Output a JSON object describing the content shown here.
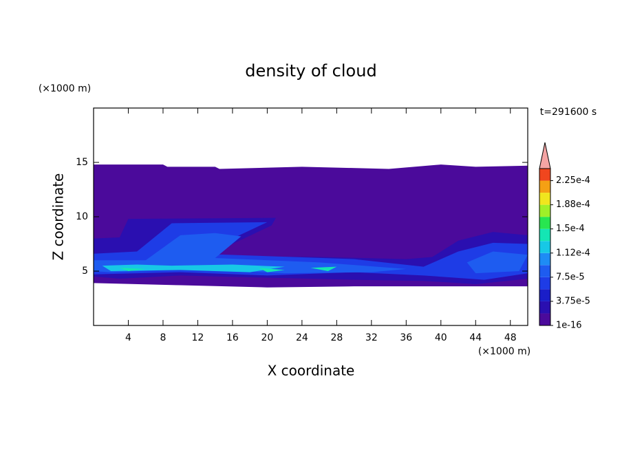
{
  "chart_data": {
    "type": "contour",
    "title": "density of cloud",
    "time_label": "t=291600 s",
    "x_label": "X coordinate",
    "y_label": "Z coordinate",
    "x_unit": "(×1000 m)",
    "y_unit": "(×1000 m)",
    "xlim": [
      0,
      50
    ],
    "ylim": [
      0,
      20
    ],
    "xticks": [
      4,
      8,
      12,
      16,
      20,
      24,
      28,
      32,
      36,
      40,
      44,
      48
    ],
    "yticks": [
      5,
      10,
      15
    ],
    "colorbar": {
      "range": [
        1e-16,
        0.00024375
      ],
      "bands": [
        "#4b0a9b",
        "#2a0fb0",
        "#1a1ec8",
        "#1e3ce6",
        "#1e5cf0",
        "#1e8cf5",
        "#17c8e6",
        "#14e6b4",
        "#28e650",
        "#a0f028",
        "#f0e61e",
        "#f5a014",
        "#f0461e"
      ],
      "extend_color": "#f4a4a4",
      "ticks": [
        {
          "value": 1e-16,
          "label": "1e-16"
        },
        {
          "value": 3.75e-05,
          "label": "3.75e-5"
        },
        {
          "value": 7.5e-05,
          "label": "7.5e-5"
        },
        {
          "value": 0.0001125,
          "label": "1.12e-4"
        },
        {
          "value": 0.00015,
          "label": "1.5e-4"
        },
        {
          "value": 0.0001875,
          "label": "1.88e-4"
        },
        {
          "value": 0.000225,
          "label": "2.25e-4"
        }
      ]
    },
    "regions": [
      {
        "level": 1e-16,
        "points": [
          [
            0,
            14.8
          ],
          [
            8,
            14.8
          ],
          [
            8.5,
            14.6
          ],
          [
            14,
            14.6
          ],
          [
            14.5,
            14.4
          ],
          [
            24,
            14.6
          ],
          [
            34,
            14.4
          ],
          [
            40,
            14.8
          ],
          [
            44,
            14.6
          ],
          [
            50,
            14.7
          ],
          [
            50,
            3.6
          ],
          [
            40,
            3.6
          ],
          [
            30,
            3.6
          ],
          [
            20,
            3.5
          ],
          [
            10,
            3.7
          ],
          [
            0,
            3.9
          ]
        ]
      },
      {
        "level": 1.875e-05,
        "points": [
          [
            0,
            8
          ],
          [
            3,
            8.1
          ],
          [
            4,
            9.8
          ],
          [
            21,
            9.9
          ],
          [
            20.5,
            9.2
          ],
          [
            16,
            7.5
          ],
          [
            12,
            6.4
          ],
          [
            26,
            6.3
          ],
          [
            36,
            6.1
          ],
          [
            39,
            6.3
          ],
          [
            42,
            7.8
          ],
          [
            46,
            8.6
          ],
          [
            50,
            8.3
          ],
          [
            50,
            4.3
          ],
          [
            44,
            3.8
          ],
          [
            38,
            4.1
          ],
          [
            30,
            4.2
          ],
          [
            20,
            4.4
          ],
          [
            10,
            4.6
          ],
          [
            3,
            4.3
          ],
          [
            0,
            4.5
          ]
        ]
      },
      {
        "level": 5.625e-05,
        "points": [
          [
            0,
            6.6
          ],
          [
            5,
            6.8
          ],
          [
            9,
            9.4
          ],
          [
            20,
            9.5
          ],
          [
            16,
            8
          ],
          [
            12,
            6.6
          ],
          [
            30,
            6.1
          ],
          [
            38,
            5.4
          ],
          [
            42,
            6.8
          ],
          [
            46,
            7.6
          ],
          [
            50,
            7.5
          ],
          [
            50,
            4.8
          ],
          [
            45,
            4.2
          ],
          [
            38,
            4.6
          ],
          [
            30,
            4.9
          ],
          [
            20,
            4.6
          ],
          [
            10,
            4.9
          ],
          [
            0,
            4.7
          ]
        ]
      },
      {
        "level": 7.5e-05,
        "points": [
          [
            0,
            6
          ],
          [
            6,
            6
          ],
          [
            10,
            8.3
          ],
          [
            14,
            8.5
          ],
          [
            17,
            8.2
          ],
          [
            14,
            6.2
          ],
          [
            26,
            5.8
          ],
          [
            36,
            5.2
          ],
          [
            32,
            4.9
          ],
          [
            22,
            4.8
          ],
          [
            12,
            5.2
          ],
          [
            2,
            4.9
          ],
          [
            0,
            5
          ]
        ]
      },
      {
        "level": 7.5e-05,
        "points": [
          [
            43,
            5.8
          ],
          [
            46,
            6.8
          ],
          [
            50,
            6.5
          ],
          [
            49,
            5
          ],
          [
            44,
            4.8
          ]
        ]
      },
      {
        "level": 0.0001125,
        "points": [
          [
            1,
            5.5
          ],
          [
            5,
            5.6
          ],
          [
            9,
            5.5
          ],
          [
            16,
            5.6
          ],
          [
            22,
            5.4
          ],
          [
            18,
            4.9
          ],
          [
            10,
            5.1
          ],
          [
            2,
            5
          ]
        ]
      },
      {
        "level": 0.00013125,
        "points": [
          [
            3,
            5.3
          ],
          [
            6,
            5.2
          ],
          [
            4,
            5
          ]
        ]
      },
      {
        "level": 0.00013125,
        "points": [
          [
            19,
            5.3
          ],
          [
            22,
            5.1
          ],
          [
            20,
            4.9
          ]
        ]
      },
      {
        "level": 0.00013125,
        "points": [
          [
            25,
            5.3
          ],
          [
            28,
            5.4
          ],
          [
            27,
            5
          ]
        ]
      }
    ]
  }
}
